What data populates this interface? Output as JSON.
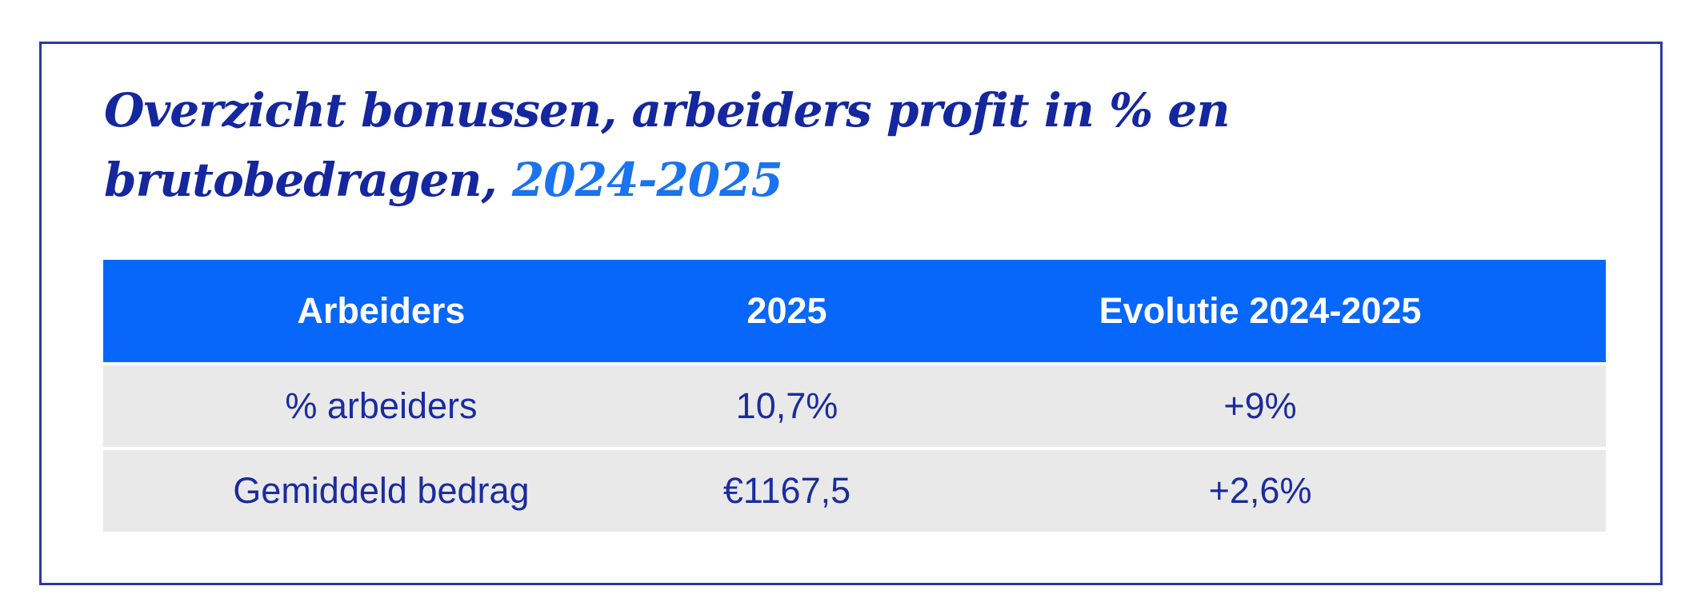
{
  "title": {
    "line1": "Overzicht bonussen, arbeiders profit in % en",
    "line2_main": "brutobedragen, ",
    "line2_year": "2024-2025"
  },
  "chart_data": {
    "type": "table",
    "title": "Overzicht bonussen, arbeiders profit in % en brutobedragen, 2024-2025",
    "columns": [
      "Arbeiders",
      "2025",
      "Evolutie 2024-2025"
    ],
    "rows": [
      {
        "cells": [
          "% arbeiders",
          "10,7%",
          "+9%"
        ]
      },
      {
        "cells": [
          "Gemiddeld bedrag",
          "€1167,5",
          "+2,6%"
        ]
      }
    ],
    "layout": {
      "header_bg": "#0667FA",
      "header_text_color": "#FFFFFF",
      "row_bg": "#E9E9E9",
      "row_text_color": "#1B2C9E",
      "title_color": "#14279E",
      "title_highlight_color": "#1A73F0",
      "card_border_color": "#2A3A9E"
    }
  }
}
